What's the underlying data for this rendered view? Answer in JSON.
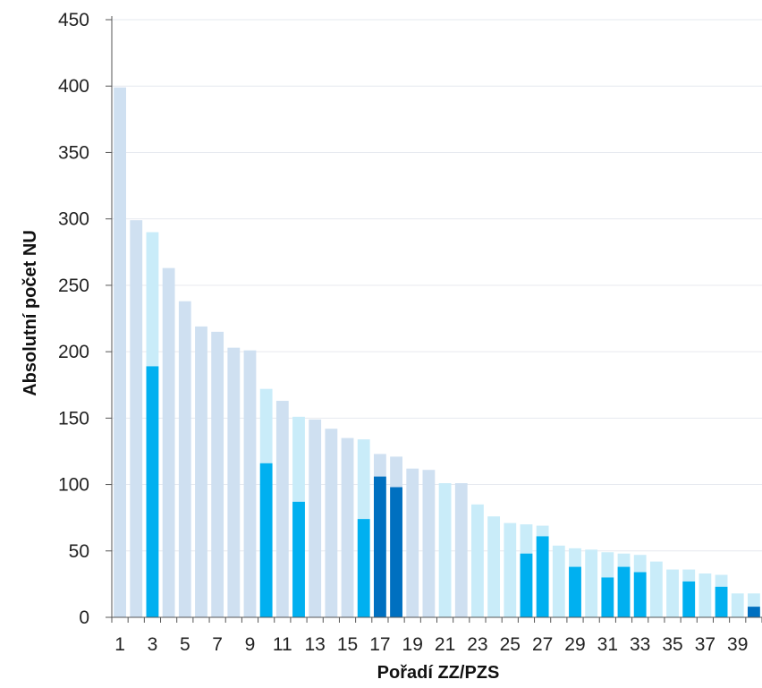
{
  "chart_data": {
    "type": "bar",
    "title": "",
    "xlabel": "Pořadí ZZ/PZS",
    "ylabel": "Absolutní počet NU",
    "ylim": [
      0,
      450
    ],
    "yticks": [
      0,
      50,
      100,
      150,
      200,
      250,
      300,
      350,
      400,
      450
    ],
    "xtick_labels": [
      "1",
      "3",
      "5",
      "7",
      "9",
      "11",
      "13",
      "15",
      "17",
      "19",
      "21",
      "23",
      "25",
      "27",
      "29",
      "31",
      "33",
      "35",
      "37",
      "39"
    ],
    "grid": "horizontal",
    "legend": "none",
    "categories": [
      1,
      2,
      3,
      4,
      5,
      6,
      7,
      8,
      9,
      10,
      11,
      12,
      13,
      14,
      15,
      16,
      17,
      18,
      19,
      20,
      21,
      22,
      23,
      24,
      25,
      26,
      27,
      28,
      29,
      30,
      31,
      32,
      33,
      34,
      35,
      36,
      37,
      38,
      39,
      40
    ],
    "series": [
      {
        "values": [
          399,
          299,
          290,
          263,
          238,
          219,
          215,
          203,
          201,
          172,
          163,
          151,
          149,
          142,
          135,
          134,
          123,
          121,
          112,
          111,
          101,
          101,
          85,
          76,
          71,
          70,
          69,
          54,
          52,
          51,
          49,
          48,
          47,
          42,
          36,
          36,
          33,
          32,
          18,
          18
        ],
        "colors": [
          "#cfe0f1",
          "#cfe0f1",
          "#c9ecf9",
          "#cfe0f1",
          "#cfe0f1",
          "#cfe0f1",
          "#cfe0f1",
          "#cfe0f1",
          "#cfe0f1",
          "#c9ecf9",
          "#cfe0f1",
          "#c9ecf9",
          "#cfe0f1",
          "#cfe0f1",
          "#cfe0f1",
          "#c9ecf9",
          "#cfe0f1",
          "#cfe0f1",
          "#cfe0f1",
          "#cfe0f1",
          "#c9ecf9",
          "#cfe0f1",
          "#c9ecf9",
          "#c9ecf9",
          "#c9ecf9",
          "#c9ecf9",
          "#c9ecf9",
          "#c9ecf9",
          "#c9ecf9",
          "#c9ecf9",
          "#c9ecf9",
          "#c9ecf9",
          "#c9ecf9",
          "#c9ecf9",
          "#c9ecf9",
          "#c9ecf9",
          "#c9ecf9",
          "#c9ecf9",
          "#c9ecf9",
          "#c9ecf9"
        ]
      },
      {
        "values": [
          0,
          0,
          189,
          0,
          0,
          0,
          0,
          0,
          0,
          116,
          0,
          87,
          0,
          0,
          0,
          74,
          106,
          98,
          0,
          0,
          0,
          0,
          0,
          0,
          0,
          48,
          61,
          0,
          38,
          0,
          30,
          38,
          34,
          0,
          0,
          27,
          0,
          23,
          0,
          8
        ],
        "colors": [
          "#00b0f0",
          "#00b0f0",
          "#00b0f0",
          "#00b0f0",
          "#00b0f0",
          "#00b0f0",
          "#00b0f0",
          "#00b0f0",
          "#00b0f0",
          "#00b0f0",
          "#00b0f0",
          "#00b0f0",
          "#00b0f0",
          "#00b0f0",
          "#00b0f0",
          "#00b0f0",
          "#0070c0",
          "#0070c0",
          "#00b0f0",
          "#00b0f0",
          "#00b0f0",
          "#00b0f0",
          "#00b0f0",
          "#00b0f0",
          "#00b0f0",
          "#00b0f0",
          "#00b0f0",
          "#00b0f0",
          "#00b0f0",
          "#00b0f0",
          "#00b0f0",
          "#00b0f0",
          "#00b0f0",
          "#00b0f0",
          "#00b0f0",
          "#00b0f0",
          "#00b0f0",
          "#00b0f0",
          "#00b0f0",
          "#0070c0"
        ]
      }
    ],
    "colors": {
      "gridline": "#e6e9ef",
      "axis": "#555555"
    }
  }
}
